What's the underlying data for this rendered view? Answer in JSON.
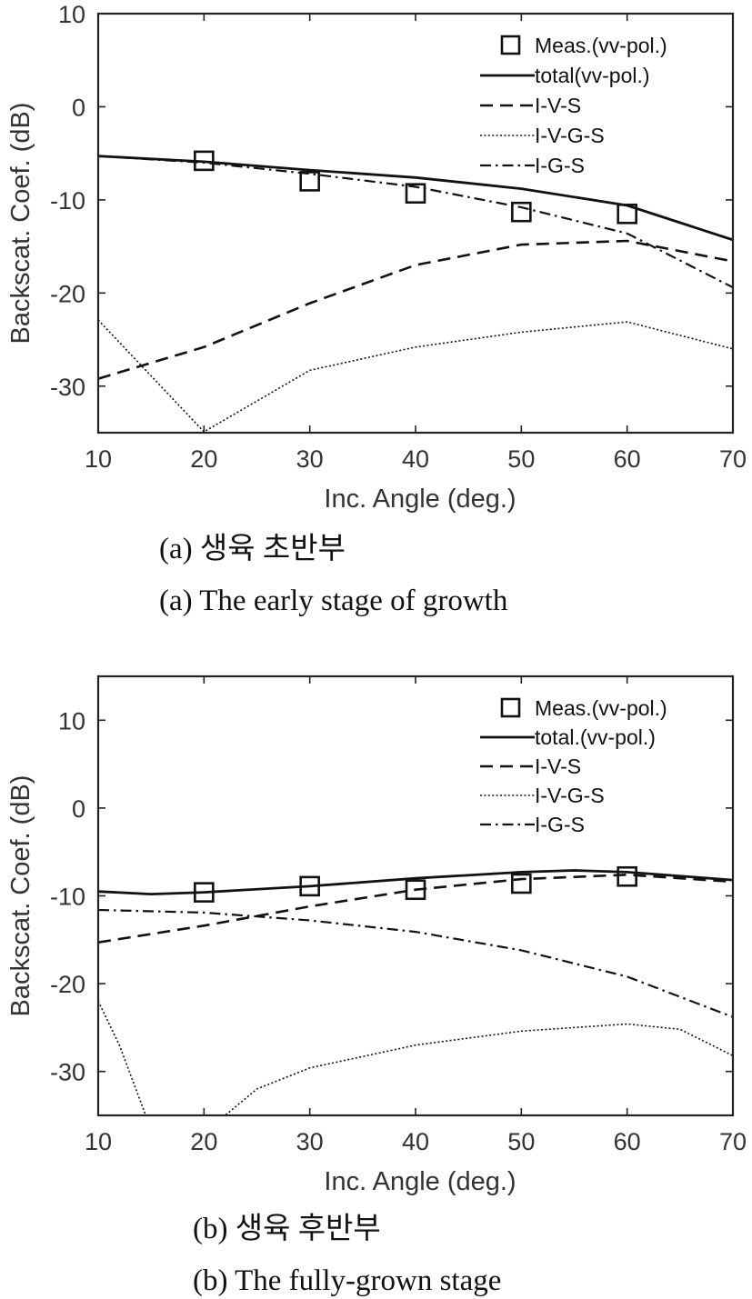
{
  "chart_data": [
    {
      "type": "line",
      "caption_kr": "(a) 생육 초반부",
      "caption_en": "(a) The early stage of growth",
      "xlabel": "Inc. Angle (deg.)",
      "ylabel": "Backscat. Coef. (dB)",
      "xlim": [
        10,
        70
      ],
      "ylim": [
        -35,
        10
      ],
      "xticks": [
        10,
        20,
        30,
        40,
        50,
        60,
        70
      ],
      "yticks": [
        10,
        0,
        -10,
        -20,
        -30
      ],
      "grid": false,
      "legend_position": "top-right",
      "series": [
        {
          "name": "total(vv-pol.)",
          "style": "solid",
          "marker": "none",
          "x": [
            10,
            20,
            30,
            40,
            50,
            60,
            70
          ],
          "y": [
            -5.3,
            -5.9,
            -6.8,
            -7.6,
            -8.8,
            -10.6,
            -14.3
          ]
        },
        {
          "name": "I-V-S",
          "style": "dashed",
          "marker": "none",
          "x": [
            10,
            20,
            30,
            40,
            50,
            60,
            70
          ],
          "y": [
            -29.2,
            -25.8,
            -21.1,
            -17.0,
            -14.8,
            -14.4,
            -16.6
          ]
        },
        {
          "name": "I-V-G-S",
          "style": "dotted",
          "marker": "none",
          "x": [
            10,
            20,
            30,
            40,
            50,
            60,
            70
          ],
          "y": [
            -22.9,
            -34.9,
            -28.3,
            -25.8,
            -24.2,
            -23.1,
            -26.0
          ]
        },
        {
          "name": "I-G-S",
          "style": "dashdot",
          "marker": "none",
          "x": [
            10,
            20,
            30,
            40,
            50,
            60,
            70
          ],
          "y": [
            -5.3,
            -6.0,
            -7.2,
            -8.6,
            -10.8,
            -13.6,
            -19.4
          ]
        },
        {
          "name": "Meas.(vv-pol.)",
          "style": "none",
          "marker": "square",
          "x": [
            20,
            30,
            40,
            50,
            60
          ],
          "y": [
            -5.8,
            -8.0,
            -9.3,
            -11.3,
            -11.5
          ]
        }
      ]
    },
    {
      "type": "line",
      "caption_kr": "(b) 생육 후반부",
      "caption_en": "(b) The fully-grown stage",
      "xlabel": "Inc. Angle (deg.)",
      "ylabel": "Backscat. Coef. (dB)",
      "xlim": [
        10,
        70
      ],
      "ylim": [
        -35,
        15
      ],
      "xticks": [
        10,
        20,
        30,
        40,
        50,
        60,
        70
      ],
      "yticks": [
        10,
        0,
        -10,
        -20,
        -30
      ],
      "grid": false,
      "legend_position": "top-right",
      "series": [
        {
          "name": "total.(vv-pol.)",
          "style": "solid",
          "marker": "none",
          "x": [
            10,
            15,
            20,
            30,
            40,
            50,
            55,
            60,
            70
          ],
          "y": [
            -9.5,
            -9.8,
            -9.6,
            -8.9,
            -8.0,
            -7.3,
            -7.1,
            -7.3,
            -8.2
          ]
        },
        {
          "name": "I-V-S",
          "style": "dashed",
          "marker": "none",
          "x": [
            10,
            20,
            30,
            40,
            50,
            60,
            70
          ],
          "y": [
            -15.3,
            -13.4,
            -11.2,
            -9.3,
            -8.1,
            -7.6,
            -8.4
          ]
        },
        {
          "name": "I-V-G-S",
          "style": "dotted",
          "marker": "none",
          "x": [
            10,
            12,
            14.5,
            22,
            25,
            30,
            40,
            50,
            60,
            65,
            70
          ],
          "y": [
            -22.0,
            -27.0,
            -35.0,
            -35.0,
            -32.0,
            -29.6,
            -27.0,
            -25.4,
            -24.6,
            -25.2,
            -28.2
          ]
        },
        {
          "name": "I-G-S",
          "style": "dashdot",
          "marker": "none",
          "x": [
            10,
            20,
            30,
            40,
            50,
            60,
            70
          ],
          "y": [
            -11.6,
            -11.9,
            -12.8,
            -14.1,
            -16.2,
            -19.2,
            -23.8
          ]
        },
        {
          "name": "Meas.(vv-pol.)",
          "style": "none",
          "marker": "square",
          "x": [
            20,
            30,
            40,
            50,
            60
          ],
          "y": [
            -9.6,
            -8.9,
            -9.3,
            -8.6,
            -7.8
          ]
        }
      ]
    }
  ]
}
